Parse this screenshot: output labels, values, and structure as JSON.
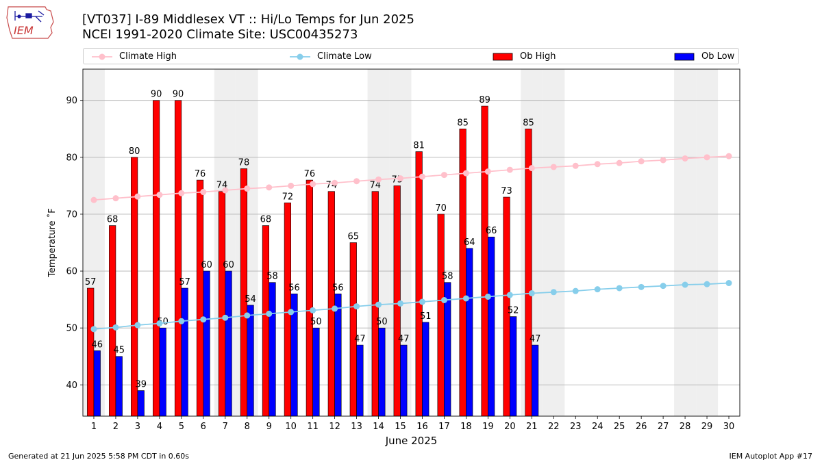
{
  "header": {
    "logo_text": "IEM",
    "title_line1": "[VT037] I-89 Middlesex  VT :: Hi/Lo Temps for Jun 2025",
    "title_line2": "NCEI 1991-2020 Climate Site: USC00435273"
  },
  "footer": {
    "left": "Generated at 21 Jun 2025 5:58 PM CDT in 0.60s",
    "right": "IEM Autoplot App #17"
  },
  "colors": {
    "climate_high": "#ffc0cb",
    "climate_low": "#87ceeb",
    "ob_high": "#ff0000",
    "ob_low": "#0000ff",
    "weekend_band": "#efefef",
    "grid": "#b0b0b0"
  },
  "chart_data": {
    "type": "bar",
    "xlabel": "June 2025",
    "ylabel": "Temperature ˚F",
    "xlim": [
      0.5,
      30.5
    ],
    "ylim": [
      34.5,
      95.5
    ],
    "yticks": [
      40,
      50,
      60,
      70,
      80,
      90
    ],
    "grid": "horizontal",
    "legend_placement": "top",
    "weekend_days": [
      1,
      7,
      8,
      14,
      15,
      21,
      22,
      28,
      29
    ],
    "days": [
      1,
      2,
      3,
      4,
      5,
      6,
      7,
      8,
      9,
      10,
      11,
      12,
      13,
      14,
      15,
      16,
      17,
      18,
      19,
      20,
      21,
      22,
      23,
      24,
      25,
      26,
      27,
      28,
      29,
      30
    ],
    "series": [
      {
        "name": "Climate High",
        "kind": "line",
        "values": [
          72.5,
          72.8,
          73.1,
          73.4,
          73.7,
          73.9,
          74.2,
          74.5,
          74.7,
          75.0,
          75.3,
          75.5,
          75.8,
          76.1,
          76.3,
          76.6,
          76.9,
          77.2,
          77.5,
          77.8,
          78.1,
          78.3,
          78.5,
          78.8,
          79.0,
          79.3,
          79.5,
          79.8,
          80.0,
          80.2
        ]
      },
      {
        "name": "Climate Low",
        "kind": "line",
        "values": [
          49.8,
          50.1,
          50.5,
          50.8,
          51.2,
          51.5,
          51.8,
          52.2,
          52.5,
          52.8,
          53.1,
          53.4,
          53.8,
          54.1,
          54.3,
          54.6,
          54.9,
          55.2,
          55.5,
          55.8,
          56.1,
          56.3,
          56.5,
          56.8,
          57.0,
          57.2,
          57.4,
          57.6,
          57.7,
          57.9
        ]
      },
      {
        "name": "Ob High",
        "kind": "bar",
        "values": [
          57,
          68,
          80,
          90,
          90,
          76,
          74,
          78,
          68,
          72,
          76,
          74,
          65,
          74,
          75,
          81,
          70,
          85,
          89,
          73,
          85,
          null,
          null,
          null,
          null,
          null,
          null,
          null,
          null,
          null
        ]
      },
      {
        "name": "Ob Low",
        "kind": "bar",
        "values": [
          46,
          45,
          39,
          50,
          57,
          60,
          60,
          54,
          58,
          56,
          50,
          56,
          47,
          50,
          47,
          51,
          58,
          64,
          66,
          52,
          47,
          null,
          null,
          null,
          null,
          null,
          null,
          null,
          null,
          null
        ]
      }
    ]
  }
}
